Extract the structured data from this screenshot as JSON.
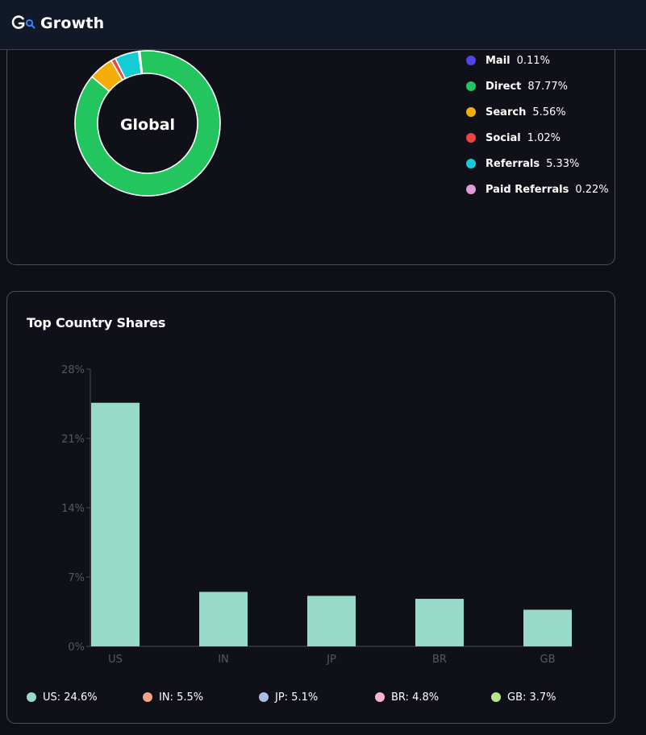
{
  "header": {
    "brand_name": "Growth",
    "logo_icon": "growth-search-logo"
  },
  "traffic_sources": {
    "center_label": "Global",
    "items": [
      {
        "label": "Mail",
        "value": "0.11%",
        "share": 0.11,
        "color": "#4f46e5"
      },
      {
        "label": "Direct",
        "value": "87.77%",
        "share": 87.77,
        "color": "#22c55e"
      },
      {
        "label": "Search",
        "value": "5.56%",
        "share": 5.56,
        "color": "#f5ad0a"
      },
      {
        "label": "Social",
        "value": "1.02%",
        "share": 1.02,
        "color": "#ef4444"
      },
      {
        "label": "Referrals",
        "value": "5.33%",
        "share": 5.33,
        "color": "#14ccd6"
      },
      {
        "label": "Paid Referrals",
        "value": "0.22%",
        "share": 0.22,
        "color": "#de9bd8"
      }
    ]
  },
  "country_card": {
    "title": "Top Country Shares"
  },
  "chart_data": {
    "type": "bar",
    "title": "Top Country Shares",
    "categories": [
      "US",
      "IN",
      "JP",
      "BR",
      "GB"
    ],
    "values": [
      24.6,
      5.5,
      5.1,
      4.8,
      3.7
    ],
    "ylim": [
      0,
      28
    ],
    "yticks": [
      "0%",
      "7%",
      "14%",
      "21%",
      "28%"
    ],
    "ytick_values": [
      0,
      7,
      14,
      21,
      28
    ],
    "bar_color": "#98d9c8",
    "legend": [
      {
        "text": "US: 24.6%",
        "color": "#98d9c8"
      },
      {
        "text": "IN: 5.5%",
        "color": "#f5a38a"
      },
      {
        "text": "JP: 5.1%",
        "color": "#aabde6"
      },
      {
        "text": "BR: 4.8%",
        "color": "#f7b3d4"
      },
      {
        "text": "GB: 3.7%",
        "color": "#b7e58b"
      }
    ]
  }
}
